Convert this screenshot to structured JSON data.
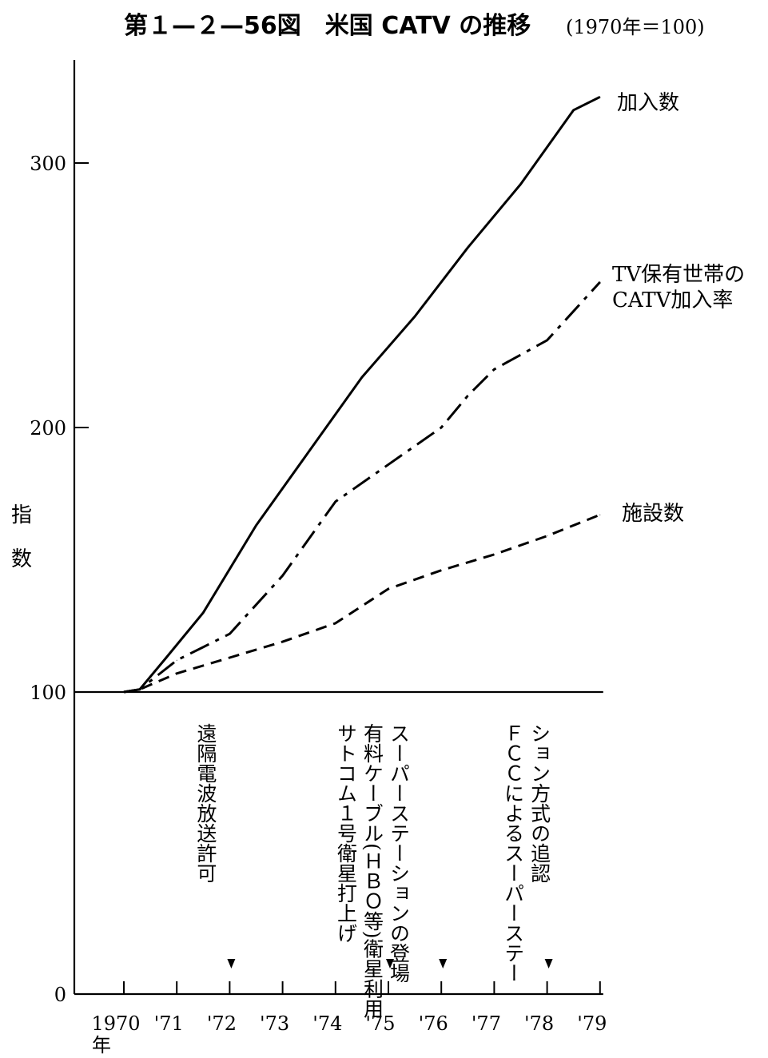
{
  "chart_data": {
    "type": "line",
    "title": "第１—２—56図　米国 CATV の推移",
    "subtitle": "(1970年＝100)",
    "ylabel": "指数",
    "ylabel_chars": [
      "指",
      "数"
    ],
    "xlabel": "年",
    "ylim": [
      0,
      340
    ],
    "yticks": [
      0,
      100,
      200,
      300
    ],
    "ytick_labels": [
      "0",
      "100",
      "200",
      "300"
    ],
    "x_start": 1970,
    "x_end": 1979,
    "xtick_labels": [
      "1970",
      "'71",
      "'72",
      "'73",
      "'74",
      "'75",
      "'76",
      "'77",
      "'78",
      "'79"
    ],
    "grid": false,
    "series": [
      {
        "name": "加入数",
        "label_lines": [
          "加入数"
        ],
        "style": "solid",
        "x": [
          1970,
          1970.3,
          1970.8,
          1971.5,
          1972.5,
          1973.5,
          1974.5,
          1975.5,
          1976.5,
          1977.5,
          1978.5,
          1979
        ],
        "y": [
          100,
          101,
          113,
          130,
          163,
          191,
          219,
          242,
          268,
          292,
          320,
          325
        ]
      },
      {
        "name": "TV保有世帯のCATV加入率",
        "label_lines": [
          "TV保有世帯の",
          "CATV加入率"
        ],
        "style": "dashdot",
        "x": [
          1970,
          1970.3,
          1971,
          1972,
          1973,
          1974,
          1975,
          1976,
          1976.5,
          1977,
          1978,
          1979
        ],
        "y": [
          100,
          101,
          112,
          122,
          144,
          172,
          186,
          200,
          212,
          222,
          233,
          255
        ]
      },
      {
        "name": "施設数",
        "label_lines": [
          "施設数"
        ],
        "style": "dashed",
        "x": [
          1970,
          1970.3,
          1971,
          1972,
          1973,
          1974,
          1975,
          1976,
          1977,
          1978,
          1979
        ],
        "y": [
          100,
          101,
          107,
          113,
          119,
          126,
          139,
          146,
          152,
          159,
          167
        ]
      }
    ],
    "annotations": [
      {
        "x": 1972,
        "lines": [
          "遠隔電波放送許可"
        ]
      },
      {
        "x": 1975,
        "lines": [
          "サトコム１号衛星打上げ",
          "有料ケーブル(ＨＢＯ等)衛星利用",
          "スーパーステーションの登場"
        ]
      },
      {
        "x": 1978,
        "lines": [
          "ＦＣＣによるスーパーステー",
          "ション方式の追認"
        ]
      }
    ]
  }
}
